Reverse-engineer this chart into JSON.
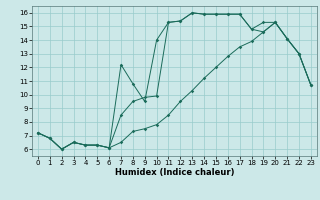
{
  "xlabel": "Humidex (Indice chaleur)",
  "background_color": "#cce8e8",
  "grid_color": "#99cccc",
  "line_color": "#1a6b5a",
  "xlim": [
    -0.5,
    23.5
  ],
  "ylim": [
    5.5,
    16.5
  ],
  "xticks": [
    0,
    1,
    2,
    3,
    4,
    5,
    6,
    7,
    8,
    9,
    10,
    11,
    12,
    13,
    14,
    15,
    16,
    17,
    18,
    19,
    20,
    21,
    22,
    23
  ],
  "yticks": [
    6,
    7,
    8,
    9,
    10,
    11,
    12,
    13,
    14,
    15,
    16
  ],
  "line1": [
    7.2,
    6.8,
    6.0,
    6.5,
    6.3,
    6.3,
    6.1,
    12.2,
    10.8,
    9.5,
    14.0,
    15.3,
    15.4,
    16.0,
    15.9,
    15.9,
    15.9,
    15.9,
    14.8,
    15.3,
    15.3,
    14.1,
    13.0,
    10.7
  ],
  "line2": [
    7.2,
    6.8,
    6.0,
    6.5,
    6.3,
    6.3,
    6.1,
    8.5,
    9.5,
    9.8,
    9.9,
    15.3,
    15.4,
    16.0,
    15.9,
    15.9,
    15.9,
    15.9,
    14.8,
    14.6,
    15.3,
    14.1,
    13.0,
    10.7
  ],
  "line3": [
    7.2,
    6.8,
    6.0,
    6.5,
    6.3,
    6.3,
    6.1,
    6.5,
    7.3,
    7.5,
    7.8,
    8.5,
    9.5,
    10.3,
    11.2,
    12.0,
    12.8,
    13.5,
    13.9,
    14.6,
    15.3,
    14.1,
    13.0,
    10.7
  ],
  "label_fontsize": 5,
  "xlabel_fontsize": 6
}
